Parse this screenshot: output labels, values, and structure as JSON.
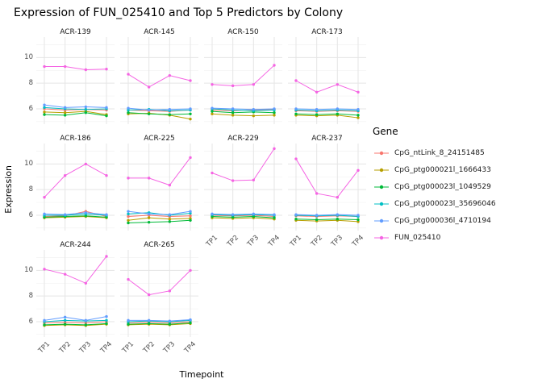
{
  "chart_data": {
    "type": "line",
    "title": "Expression of FUN_025410 and Top 5 Predictors by Colony",
    "xlabel": "Timepoint",
    "ylabel": "Expression",
    "legend_title": "Gene",
    "legend_position": "right",
    "grid": true,
    "x_categories": [
      "TP1",
      "TP2",
      "TP3",
      "TP4"
    ],
    "y_ticks": [
      6,
      8,
      10
    ],
    "y_minor_ticks": [
      5,
      7,
      9,
      11
    ],
    "ylim": [
      4.8,
      11.6
    ],
    "genes": [
      {
        "name": "CpG_ntLink_8_24151485",
        "color": "#F8766D"
      },
      {
        "name": "CpG_ptg000021l_1666433",
        "color": "#B79F00"
      },
      {
        "name": "CpG_ptg000023l_1049529",
        "color": "#00BA38"
      },
      {
        "name": "CpG_ptg000023l_35696046",
        "color": "#00BFC4"
      },
      {
        "name": "CpG_ptg000036l_4710194",
        "color": "#619CFF"
      },
      {
        "name": "FUN_025410",
        "color": "#F564E3"
      }
    ],
    "facets": [
      {
        "label": "ACR-139",
        "series": [
          [
            6.0,
            5.9,
            5.95,
            5.9
          ],
          [
            5.75,
            5.7,
            5.8,
            5.55
          ],
          [
            5.55,
            5.5,
            5.7,
            5.45
          ],
          [
            6.1,
            6.0,
            5.95,
            6.0
          ],
          [
            6.3,
            6.1,
            6.15,
            6.1
          ],
          [
            9.3,
            9.3,
            9.05,
            9.1
          ]
        ]
      },
      {
        "label": "ACR-145",
        "series": [
          [
            5.9,
            5.85,
            5.8,
            5.9
          ],
          [
            5.6,
            5.65,
            5.5,
            5.2
          ],
          [
            5.7,
            5.6,
            5.55,
            5.6
          ],
          [
            5.9,
            5.95,
            5.85,
            5.9
          ],
          [
            6.05,
            5.9,
            5.95,
            6.0
          ],
          [
            8.7,
            7.7,
            8.6,
            8.2
          ]
        ]
      },
      {
        "label": "ACR-150",
        "series": [
          [
            5.9,
            5.85,
            5.9,
            5.95
          ],
          [
            5.6,
            5.5,
            5.45,
            5.5
          ],
          [
            5.8,
            5.7,
            5.75,
            5.7
          ],
          [
            6.0,
            5.9,
            5.85,
            5.9
          ],
          [
            6.05,
            6.0,
            5.95,
            6.0
          ],
          [
            7.9,
            7.8,
            7.9,
            9.4
          ]
        ]
      },
      {
        "label": "ACR-173",
        "series": [
          [
            5.85,
            5.8,
            5.85,
            5.8
          ],
          [
            5.5,
            5.45,
            5.5,
            5.3
          ],
          [
            5.6,
            5.55,
            5.6,
            5.5
          ],
          [
            5.9,
            5.85,
            5.9,
            5.85
          ],
          [
            6.0,
            5.95,
            6.0,
            5.95
          ],
          [
            8.2,
            7.3,
            7.9,
            7.3
          ]
        ]
      },
      {
        "label": "ACR-186",
        "series": [
          [
            5.9,
            5.95,
            6.3,
            5.9
          ],
          [
            5.8,
            5.85,
            5.9,
            5.8
          ],
          [
            5.85,
            5.9,
            5.95,
            5.85
          ],
          [
            6.0,
            6.0,
            6.1,
            6.0
          ],
          [
            6.1,
            6.05,
            6.2,
            6.05
          ],
          [
            7.4,
            9.1,
            10.0,
            9.1
          ]
        ]
      },
      {
        "label": "ACR-225",
        "series": [
          [
            5.9,
            6.0,
            5.9,
            5.95
          ],
          [
            5.6,
            5.8,
            5.7,
            5.75
          ],
          [
            5.4,
            5.45,
            5.5,
            5.6
          ],
          [
            6.1,
            6.2,
            6.0,
            6.15
          ],
          [
            6.3,
            6.1,
            6.05,
            6.3
          ],
          [
            8.9,
            8.9,
            8.35,
            10.5
          ]
        ]
      },
      {
        "label": "ACR-229",
        "series": [
          [
            6.0,
            5.95,
            6.0,
            5.9
          ],
          [
            5.8,
            5.75,
            5.8,
            5.7
          ],
          [
            5.9,
            5.85,
            5.9,
            5.8
          ],
          [
            6.05,
            6.0,
            6.05,
            6.0
          ],
          [
            6.1,
            6.05,
            6.1,
            6.05
          ],
          [
            9.3,
            8.7,
            8.75,
            11.2
          ]
        ]
      },
      {
        "label": "ACR-237",
        "series": [
          [
            5.95,
            5.9,
            5.95,
            5.9
          ],
          [
            5.6,
            5.55,
            5.6,
            5.5
          ],
          [
            5.7,
            5.65,
            5.7,
            5.65
          ],
          [
            6.0,
            5.95,
            6.0,
            5.9
          ],
          [
            6.05,
            6.0,
            6.05,
            6.0
          ],
          [
            10.4,
            7.7,
            7.4,
            9.5
          ]
        ]
      },
      {
        "label": "ACR-244",
        "series": [
          [
            5.9,
            5.95,
            5.9,
            6.0
          ],
          [
            5.7,
            5.75,
            5.7,
            5.8
          ],
          [
            5.75,
            5.8,
            5.75,
            5.85
          ],
          [
            6.0,
            6.1,
            6.05,
            6.1
          ],
          [
            6.1,
            6.35,
            6.1,
            6.4
          ],
          [
            10.1,
            9.7,
            9.0,
            11.1
          ]
        ]
      },
      {
        "label": "ACR-265",
        "series": [
          [
            5.9,
            5.95,
            5.9,
            6.0
          ],
          [
            5.75,
            5.8,
            5.75,
            5.85
          ],
          [
            5.8,
            5.85,
            5.8,
            5.9
          ],
          [
            6.0,
            6.05,
            6.0,
            6.1
          ],
          [
            6.1,
            6.1,
            6.05,
            6.15
          ],
          [
            9.3,
            8.1,
            8.4,
            10.0
          ]
        ]
      }
    ],
    "style": {
      "grid_major_color": "#e5e5e5",
      "grid_minor_color": "#f2f2f2",
      "axis_text_color": "#4d4d4d"
    }
  }
}
